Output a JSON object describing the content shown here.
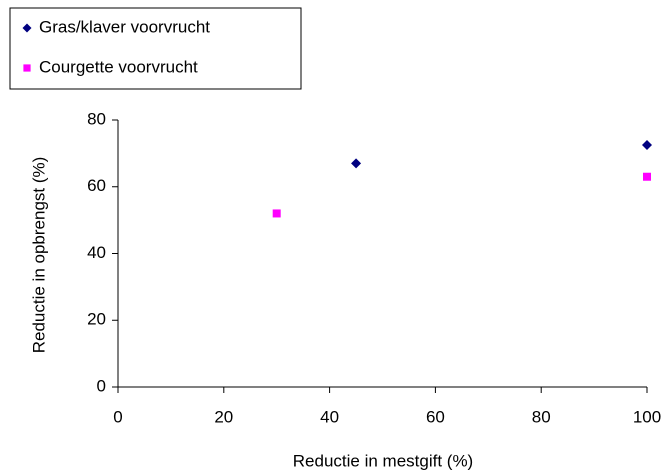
{
  "chart_data": {
    "type": "scatter",
    "x_label": "Reductie in mestgift (%)",
    "y_label": "Reductie in opbrengst (%)",
    "series": [
      {
        "name": "Gras/klaver voorvrucht",
        "color": "#000080",
        "marker": "diamond",
        "x": [
          45,
          100
        ],
        "values": [
          67,
          72.5
        ]
      },
      {
        "name": "Courgette voorvrucht",
        "color": "#ff00ff",
        "marker": "square",
        "x": [
          30,
          100
        ],
        "values": [
          52,
          63
        ]
      }
    ],
    "xlim": [
      0,
      100
    ],
    "xticks": [
      0,
      20,
      40,
      60,
      80,
      100
    ],
    "ylim": [
      0,
      80
    ],
    "yticks": [
      0,
      20,
      40,
      60,
      80
    ],
    "grid": false,
    "legend": "top-left"
  }
}
